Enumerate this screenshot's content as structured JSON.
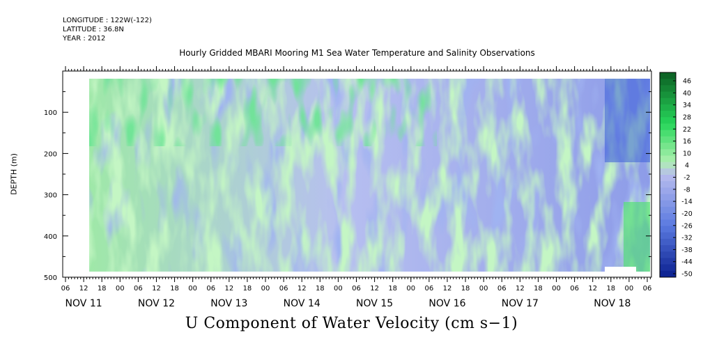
{
  "header": {
    "longitude": "LONGITUDE : 122W(-122)",
    "latitude": "LATITUDE : 36.8N",
    "year": "YEAR : 2012"
  },
  "chart_data": {
    "type": "heatmap",
    "title": "Hourly Gridded MBARI Mooring M1 Sea Water Temperature and Salinity Observations",
    "ylabel": "DEPTH (m)",
    "caption": "U Component of Water Velocity (cm s−1)",
    "ylim": [
      500,
      0
    ],
    "y_ticks": [
      100,
      200,
      300,
      400,
      500
    ],
    "x_hour_ticks": [
      "06",
      "12",
      "18",
      "00",
      "06",
      "12",
      "18",
      "00",
      "06",
      "12",
      "18",
      "00",
      "06",
      "12",
      "18",
      "00",
      "06",
      "12",
      "18",
      "00",
      "06",
      "12",
      "18",
      "00",
      "06",
      "12",
      "18",
      "00",
      "06",
      "12",
      "18",
      "00",
      "06"
    ],
    "x_day_labels": [
      "NOV 11",
      "NOV 12",
      "NOV 13",
      "NOV 14",
      "NOV 15",
      "NOV 16",
      "NOV 17",
      "NOV 18"
    ],
    "colorbar_ticks": [
      46,
      40,
      34,
      28,
      22,
      16,
      10,
      4,
      -2,
      -8,
      -14,
      -20,
      -26,
      -32,
      -38,
      -44,
      -50
    ],
    "colorbar_range": [
      -50,
      46
    ],
    "colors": {
      "negative_strong": "#0a1f8f",
      "negative_mid": "#5a7ae0",
      "negative_weak": "#b8bcee",
      "positive_weak": "#aef0b0",
      "positive_mid": "#27d65a",
      "positive_strong": "#0b5d22"
    },
    "series": [
      {
        "depth_bands_m": [
          20,
          100,
          200,
          300,
          400,
          485
        ],
        "hours_from_nov11_00": [
          12,
          24,
          48,
          72,
          96,
          120,
          144,
          168,
          180
        ],
        "values": [
          [
            10,
            20,
            22,
            25,
            15,
            5,
            -15,
            -20,
            -25
          ],
          [
            8,
            15,
            10,
            12,
            10,
            0,
            -10,
            -15,
            -20
          ],
          [
            5,
            8,
            -2,
            2,
            4,
            -5,
            -8,
            -12,
            -14
          ],
          [
            6,
            4,
            -4,
            0,
            2,
            -6,
            -10,
            -10,
            -12
          ],
          [
            8,
            0,
            -2,
            -4,
            -2,
            -6,
            -10,
            -8,
            12
          ],
          [
            4,
            -2,
            -6,
            -8,
            -4,
            -8,
            -6,
            -10,
            10
          ]
        ]
      }
    ]
  }
}
